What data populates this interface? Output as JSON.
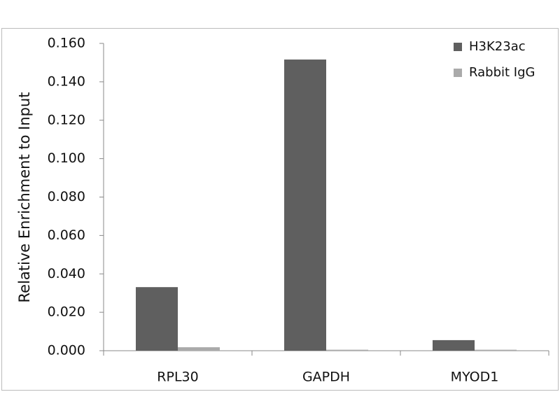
{
  "chart_data": {
    "type": "bar",
    "y_label": "Relative Enrichment to Input",
    "categories": [
      "RPL30",
      "GAPDH",
      "MYOD1"
    ],
    "series": [
      {
        "name": "H3K23ac",
        "color": "#5f5f5f",
        "values": [
          0.0331,
          0.1516,
          0.0055
        ]
      },
      {
        "name": "Rabbit IgG",
        "color": "#aaaaaa",
        "values": [
          0.0018,
          0.0005,
          0.0005
        ]
      }
    ],
    "ylim": [
      0,
      0.16
    ],
    "yticks": [
      {
        "value": 0,
        "label": "0.000"
      },
      {
        "value": 0.02,
        "label": "0.020"
      },
      {
        "value": 0.04,
        "label": "0.040"
      },
      {
        "value": 0.06,
        "label": "0.060"
      },
      {
        "value": 0.08,
        "label": "0.080"
      },
      {
        "value": 0.1,
        "label": "0.100"
      },
      {
        "value": 0.12,
        "label": "0.120"
      },
      {
        "value": 0.14,
        "label": "0.140"
      },
      {
        "value": 0.16,
        "label": "0.160"
      }
    ],
    "grid": false,
    "legend": "top-right"
  }
}
